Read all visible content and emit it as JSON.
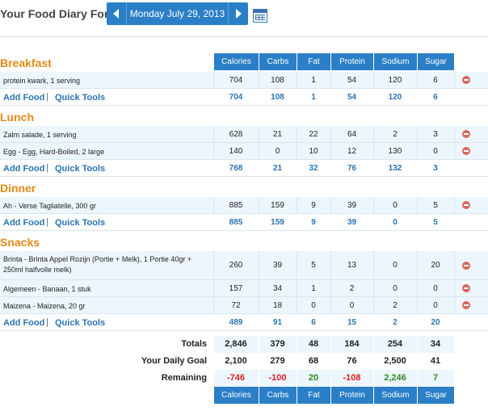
{
  "header": {
    "title": "Your Food Diary For:",
    "date": "Monday July 29, 2013",
    "prev_icon": "left-arrow-icon",
    "next_icon": "right-arrow-icon",
    "calendar_icon": "calendar-icon"
  },
  "columns": [
    "Calories",
    "Carbs",
    "Fat",
    "Protein",
    "Sodium",
    "Sugar"
  ],
  "links": {
    "add_food": "Add Food",
    "separator": "|",
    "quick_tools": "Quick Tools"
  },
  "meals": [
    {
      "title": "Breakfast",
      "foods": [
        {
          "name": "protein kwark, 1 serving",
          "values": [
            "704",
            "108",
            "1",
            "54",
            "120",
            "6"
          ]
        }
      ],
      "totals": [
        "704",
        "108",
        "1",
        "54",
        "120",
        "6"
      ]
    },
    {
      "title": "Lunch",
      "foods": [
        {
          "name": "Zalm salade, 1 serving",
          "values": [
            "628",
            "21",
            "22",
            "64",
            "2",
            "3"
          ]
        },
        {
          "name": "Egg - Egg, Hard-Boiled, 2 large",
          "values": [
            "140",
            "0",
            "10",
            "12",
            "130",
            "0"
          ]
        }
      ],
      "totals": [
        "768",
        "21",
        "32",
        "76",
        "132",
        "3"
      ]
    },
    {
      "title": "Dinner",
      "foods": [
        {
          "name": "Ah - Verse Tagliatelle, 300 gr",
          "values": [
            "885",
            "159",
            "9",
            "39",
            "0",
            "5"
          ]
        }
      ],
      "totals": [
        "885",
        "159",
        "9",
        "39",
        "0",
        "5"
      ]
    },
    {
      "title": "Snacks",
      "foods": [
        {
          "name": "Brinta - Brinta Appel Rozijn (Portie + Melk), 1 Portie 40gr + 250ml halfvolle melk)",
          "values": [
            "260",
            "39",
            "5",
            "13",
            "0",
            "20"
          ]
        },
        {
          "name": "Algemeen - Banaan, 1 stuk",
          "values": [
            "157",
            "34",
            "1",
            "2",
            "0",
            "0"
          ]
        },
        {
          "name": "Maizena - Maizena, 20 gr",
          "values": [
            "72",
            "18",
            "0",
            "0",
            "2",
            "0"
          ]
        }
      ],
      "totals": [
        "489",
        "91",
        "6",
        "15",
        "2",
        "20"
      ]
    }
  ],
  "summary": {
    "totals_label": "Totals",
    "totals": [
      "2,846",
      "379",
      "48",
      "184",
      "254",
      "34"
    ],
    "goal_label": "Your Daily Goal",
    "goal": [
      "2,100",
      "279",
      "68",
      "76",
      "2,500",
      "41"
    ],
    "remaining_label": "Remaining",
    "remaining": [
      "-746",
      "-100",
      "20",
      "-108",
      "2,246",
      "7"
    ],
    "remaining_status": [
      "neg",
      "neg",
      "pos",
      "neg",
      "pos",
      "pos"
    ]
  },
  "colors": {
    "accent": "#2a7fc7",
    "meal_title": "#e58a17",
    "negative": "#d51e1e",
    "positive": "#2e8a1e"
  }
}
